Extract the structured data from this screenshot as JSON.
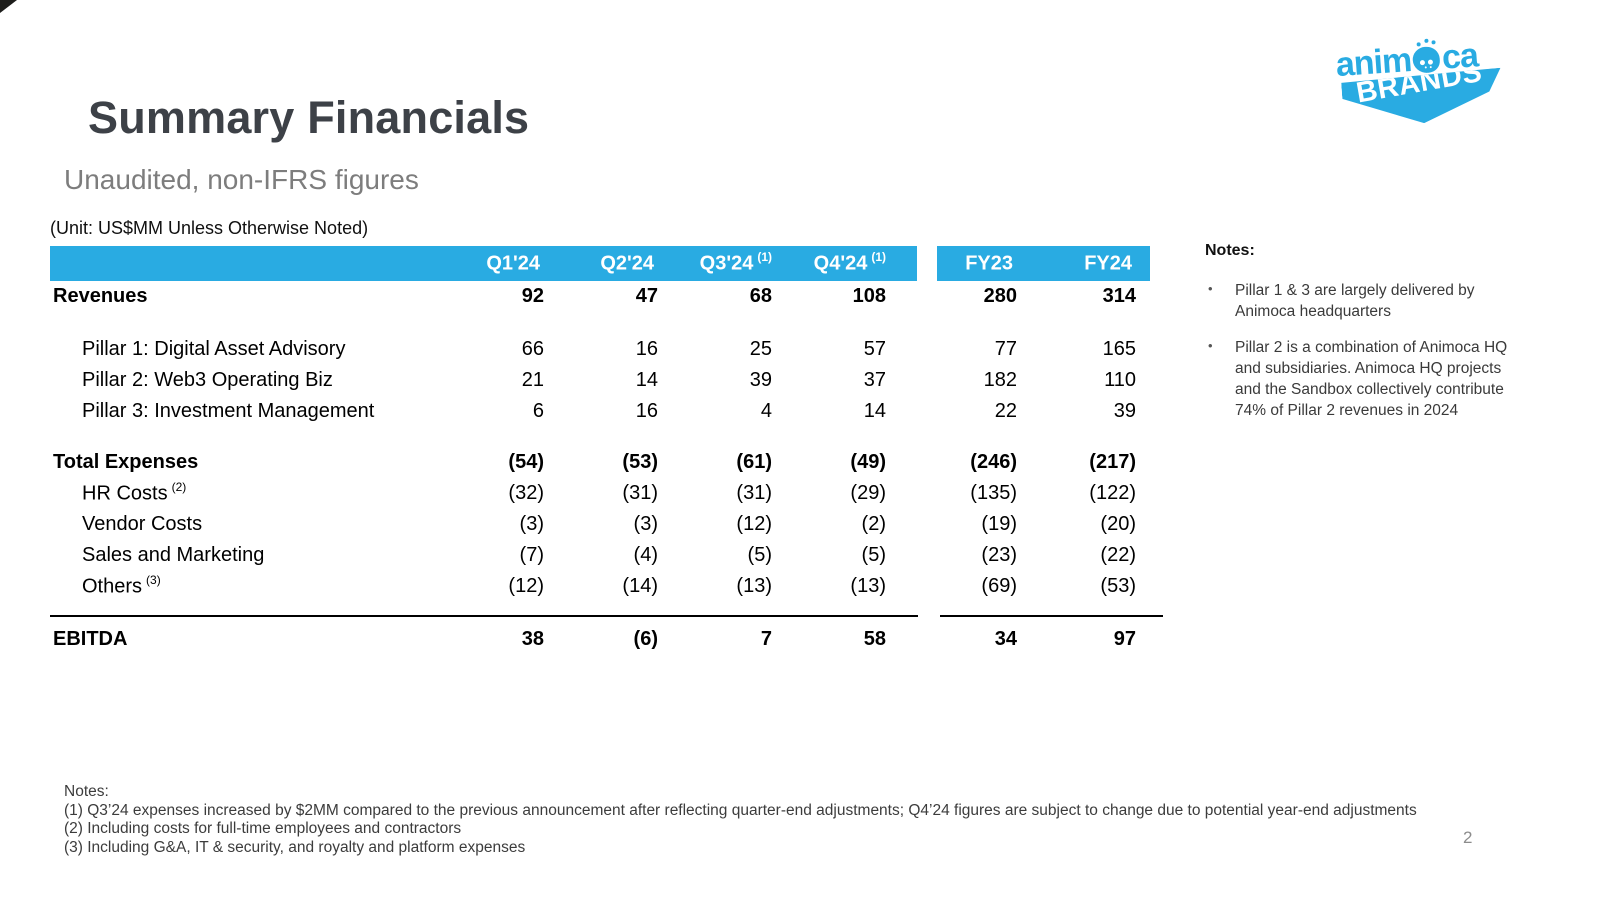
{
  "slide": {
    "title": "Summary Financials",
    "subtitle": "Unaudited, non-IFRS figures",
    "unit_note": "(Unit: US$MM Unless Otherwise Noted)",
    "page_number": "2"
  },
  "logo": {
    "word_part1": "anim",
    "word_part2": "ca",
    "banner": "BRANDS"
  },
  "colors": {
    "brand_blue": "#29ABE2",
    "header_text": "#FFFFFF"
  },
  "table": {
    "columns": [
      {
        "label": "Q1'24",
        "sup": ""
      },
      {
        "label": "Q2'24",
        "sup": ""
      },
      {
        "label": "Q3'24",
        "sup": "(1)"
      },
      {
        "label": "Q4'24",
        "sup": "(1)"
      },
      {
        "label": "FY23",
        "sup": ""
      },
      {
        "label": "FY24",
        "sup": ""
      }
    ],
    "rows": [
      {
        "label": "Revenues",
        "sup": "",
        "values": [
          "92",
          "47",
          "68",
          "108",
          "280",
          "314"
        ]
      },
      {
        "label": "Pillar 1: Digital Asset Advisory",
        "sup": "",
        "values": [
          "66",
          "16",
          "25",
          "57",
          "77",
          "165"
        ]
      },
      {
        "label": "Pillar 2: Web3 Operating Biz",
        "sup": "",
        "values": [
          "21",
          "14",
          "39",
          "37",
          "182",
          "110"
        ]
      },
      {
        "label": "Pillar 3: Investment Management",
        "sup": "",
        "values": [
          "6",
          "16",
          "4",
          "14",
          "22",
          "39"
        ]
      },
      {
        "label": "Total Expenses",
        "sup": "",
        "values": [
          "(54)",
          "(53)",
          "(61)",
          "(49)",
          "(246)",
          "(217)"
        ]
      },
      {
        "label": "HR Costs",
        "sup": "(2)",
        "values": [
          "(32)",
          "(31)",
          "(31)",
          "(29)",
          "(135)",
          "(122)"
        ]
      },
      {
        "label": "Vendor Costs",
        "sup": "",
        "values": [
          "(3)",
          "(3)",
          "(12)",
          "(2)",
          "(19)",
          "(20)"
        ]
      },
      {
        "label": "Sales and Marketing",
        "sup": "",
        "values": [
          "(7)",
          "(4)",
          "(5)",
          "(5)",
          "(23)",
          "(22)"
        ]
      },
      {
        "label": "Others",
        "sup": "(3)",
        "values": [
          "(12)",
          "(14)",
          "(13)",
          "(13)",
          "(69)",
          "(53)"
        ]
      },
      {
        "label": "EBITDA",
        "sup": "",
        "values": [
          "38",
          "(6)",
          "7",
          "58",
          "34",
          "97"
        ]
      }
    ]
  },
  "notes_panel": {
    "heading": "Notes:",
    "bullets": [
      "Pillar 1 & 3 are largely delivered by Animoca headquarters",
      "Pillar 2 is a combination of Animoca HQ and subsidiaries. Animoca HQ projects and the Sandbox collectively contribute 74% of Pillar 2 revenues in 2024"
    ]
  },
  "footnotes": {
    "heading": "Notes:",
    "items": [
      "(1) Q3’24 expenses increased by $2MM compared to the previous announcement after reflecting quarter-end adjustments; Q4’24 figures are subject to change due to potential year-end adjustments",
      "(2) Including costs for full-time employees and contractors",
      "(3) Including G&A, IT & security, and royalty and platform expenses"
    ]
  }
}
